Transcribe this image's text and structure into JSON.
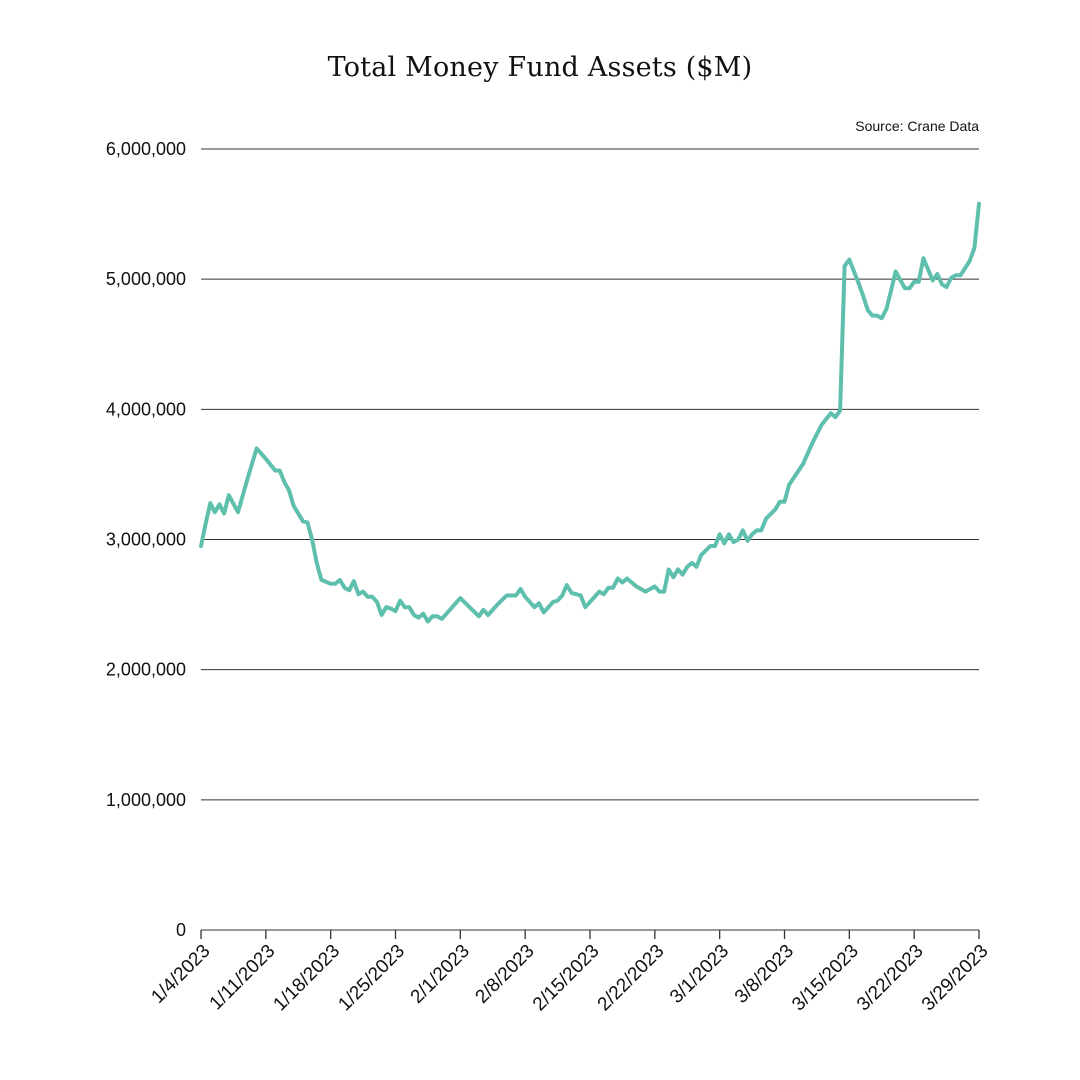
{
  "chart_data": {
    "type": "line",
    "title": "Total Money Fund Assets ($M)",
    "source": "Source: Crane Data",
    "xlabel": "",
    "ylabel": "",
    "x_start": "1/4/2023",
    "x_end": "3/29/2023",
    "x_ticks": [
      "1/4/2023",
      "1/11/2023",
      "1/18/2023",
      "1/25/2023",
      "2/1/2023",
      "2/8/2023",
      "2/15/2023",
      "2/22/2023",
      "3/1/2023",
      "3/8/2023",
      "3/15/2023",
      "3/22/2023",
      "3/29/2023"
    ],
    "y_ticks": [
      0,
      1000000,
      2000000,
      3000000,
      4000000,
      5000000,
      6000000
    ],
    "y_tick_labels": [
      "0",
      "1,000,000",
      "2,000,000",
      "3,000,000",
      "4,000,000",
      "5,000,000",
      "6,000,000"
    ],
    "ylim": [
      0,
      6000000
    ],
    "grid": true,
    "legend": "none",
    "color": "#5fbfad",
    "series": [
      {
        "points": [
          [
            "1/4/2023",
            2950000
          ],
          [
            "1/4/2023",
            3120000
          ],
          [
            "1/5/2023",
            3280000
          ],
          [
            "1/5/2023",
            3210000
          ],
          [
            "1/6/2023",
            3270000
          ],
          [
            "1/6/2023",
            3200000
          ],
          [
            "1/7/2023",
            3340000
          ],
          [
            "1/8/2023",
            3210000
          ],
          [
            "1/9/2023",
            3460000
          ],
          [
            "1/10/2023",
            3700000
          ],
          [
            "1/11/2023",
            3620000
          ],
          [
            "1/12/2023",
            3530000
          ],
          [
            "1/12/2023",
            3530000
          ],
          [
            "1/13/2023",
            3440000
          ],
          [
            "1/13/2023",
            3380000
          ],
          [
            "1/14/2023",
            3260000
          ],
          [
            "1/15/2023",
            3140000
          ],
          [
            "1/15/2023",
            3130000
          ],
          [
            "1/16/2023",
            3000000
          ],
          [
            "1/16/2023",
            2820000
          ],
          [
            "1/17/2023",
            2690000
          ],
          [
            "1/18/2023",
            2660000
          ],
          [
            "1/18/2023",
            2660000
          ],
          [
            "1/19/2023",
            2690000
          ],
          [
            "1/19/2023",
            2630000
          ],
          [
            "1/20/2023",
            2610000
          ],
          [
            "1/20/2023",
            2680000
          ],
          [
            "1/21/2023",
            2580000
          ],
          [
            "1/21/2023",
            2600000
          ],
          [
            "1/22/2023",
            2560000
          ],
          [
            "1/22/2023",
            2560000
          ],
          [
            "1/23/2023",
            2520000
          ],
          [
            "1/23/2023",
            2420000
          ],
          [
            "1/24/2023",
            2480000
          ],
          [
            "1/24/2023",
            2470000
          ],
          [
            "1/25/2023",
            2450000
          ],
          [
            "1/25/2023",
            2530000
          ],
          [
            "1/26/2023",
            2480000
          ],
          [
            "1/26/2023",
            2480000
          ],
          [
            "1/27/2023",
            2420000
          ],
          [
            "1/27/2023",
            2400000
          ],
          [
            "1/28/2023",
            2430000
          ],
          [
            "1/28/2023",
            2370000
          ],
          [
            "1/29/2023",
            2410000
          ],
          [
            "1/29/2023",
            2410000
          ],
          [
            "1/30/2023",
            2390000
          ],
          [
            "2/1/2023",
            2550000
          ],
          [
            "2/2/2023",
            2480000
          ],
          [
            "2/3/2023",
            2410000
          ],
          [
            "2/3/2023",
            2460000
          ],
          [
            "2/4/2023",
            2420000
          ],
          [
            "2/5/2023",
            2500000
          ],
          [
            "2/6/2023",
            2570000
          ],
          [
            "2/7/2023",
            2570000
          ],
          [
            "2/7/2023",
            2620000
          ],
          [
            "2/8/2023",
            2560000
          ],
          [
            "2/9/2023",
            2480000
          ],
          [
            "2/9/2023",
            2510000
          ],
          [
            "2/10/2023",
            2440000
          ],
          [
            "2/11/2023",
            2520000
          ],
          [
            "2/11/2023",
            2530000
          ],
          [
            "2/12/2023",
            2570000
          ],
          [
            "2/12/2023",
            2650000
          ],
          [
            "2/13/2023",
            2590000
          ],
          [
            "2/13/2023",
            2580000
          ],
          [
            "2/14/2023",
            2570000
          ],
          [
            "2/14/2023",
            2480000
          ],
          [
            "2/15/2023",
            2520000
          ],
          [
            "2/16/2023",
            2600000
          ],
          [
            "2/16/2023",
            2580000
          ],
          [
            "2/17/2023",
            2630000
          ],
          [
            "2/17/2023",
            2630000
          ],
          [
            "2/18/2023",
            2700000
          ],
          [
            "2/18/2023",
            2670000
          ],
          [
            "2/19/2023",
            2700000
          ],
          [
            "2/20/2023",
            2640000
          ],
          [
            "2/21/2023",
            2600000
          ],
          [
            "2/22/2023",
            2640000
          ],
          [
            "2/22/2023",
            2600000
          ],
          [
            "2/23/2023",
            2600000
          ],
          [
            "2/23/2023",
            2770000
          ],
          [
            "2/24/2023",
            2710000
          ],
          [
            "2/24/2023",
            2770000
          ],
          [
            "2/25/2023",
            2730000
          ],
          [
            "2/25/2023",
            2790000
          ],
          [
            "2/26/2023",
            2820000
          ],
          [
            "2/26/2023",
            2790000
          ],
          [
            "2/27/2023",
            2880000
          ],
          [
            "2/28/2023",
            2950000
          ],
          [
            "2/28/2023",
            2950000
          ],
          [
            "3/1/2023",
            3040000
          ],
          [
            "3/1/2023",
            2970000
          ],
          [
            "3/2/2023",
            3040000
          ],
          [
            "3/2/2023",
            2980000
          ],
          [
            "3/3/2023",
            3000000
          ],
          [
            "3/3/2023",
            3070000
          ],
          [
            "3/4/2023",
            2990000
          ],
          [
            "3/4/2023",
            3040000
          ],
          [
            "3/5/2023",
            3070000
          ],
          [
            "3/5/2023",
            3070000
          ],
          [
            "3/6/2023",
            3160000
          ],
          [
            "3/7/2023",
            3230000
          ],
          [
            "3/7/2023",
            3290000
          ],
          [
            "3/8/2023",
            3290000
          ],
          [
            "3/8/2023",
            3420000
          ],
          [
            "3/10/2023",
            3580000
          ],
          [
            "3/11/2023",
            3740000
          ],
          [
            "3/12/2023",
            3880000
          ],
          [
            "3/13/2023",
            3970000
          ],
          [
            "3/13/2023",
            3940000
          ],
          [
            "3/14/2023",
            3990000
          ],
          [
            "3/14/2023",
            5100000
          ],
          [
            "3/15/2023",
            5150000
          ],
          [
            "3/16/2023",
            4970000
          ],
          [
            "3/16/2023",
            4870000
          ],
          [
            "3/17/2023",
            4760000
          ],
          [
            "3/17/2023",
            4720000
          ],
          [
            "3/18/2023",
            4720000
          ],
          [
            "3/18/2023",
            4700000
          ],
          [
            "3/19/2023",
            4770000
          ],
          [
            "3/19/2023",
            4910000
          ],
          [
            "3/20/2023",
            5060000
          ],
          [
            "3/21/2023",
            4930000
          ],
          [
            "3/21/2023",
            4930000
          ],
          [
            "3/22/2023",
            4980000
          ],
          [
            "3/22/2023",
            4980000
          ],
          [
            "3/23/2023",
            5160000
          ],
          [
            "3/24/2023",
            4990000
          ],
          [
            "3/24/2023",
            5040000
          ],
          [
            "3/25/2023",
            4960000
          ],
          [
            "3/25/2023",
            4940000
          ],
          [
            "3/26/2023",
            5010000
          ],
          [
            "3/26/2023",
            5030000
          ],
          [
            "3/27/2023",
            5030000
          ],
          [
            "3/28/2023",
            5140000
          ],
          [
            "3/29/2023",
            5240000
          ],
          [
            "3/29/2023",
            5580000
          ]
        ]
      }
    ]
  }
}
